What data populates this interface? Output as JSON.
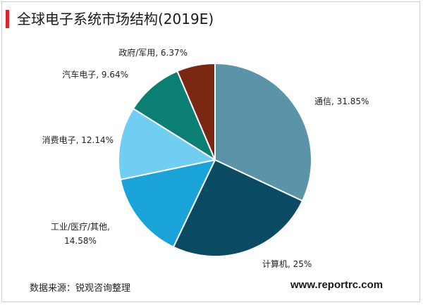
{
  "title": "全球电子系统市场结构(2019E)",
  "source": "数据来源：锐观咨询整理",
  "website": "www.reportrc.com",
  "chart_data": {
    "type": "pie",
    "title": "全球电子系统市场结构(2019E)",
    "slices": [
      {
        "name": "通信",
        "value": 31.85,
        "label": "通信, 31.85%",
        "color": "#5b93a8"
      },
      {
        "name": "计算机",
        "value": 25,
        "label": "计算机, 25%",
        "color": "#0b4a63"
      },
      {
        "name": "工业/医疗/其他",
        "value": 14.58,
        "label": "工业/医疗/其他, 14.58%",
        "label_lines": [
          "工业/医疗/其他,",
          "14.58%"
        ],
        "color": "#1aa3d9"
      },
      {
        "name": "消费电子",
        "value": 12.14,
        "label": "消费电子, 12.14%",
        "color": "#6fcef1"
      },
      {
        "name": "汽车电子",
        "value": 9.64,
        "label": "汽车电子, 9.64%",
        "color": "#0c7f74"
      },
      {
        "name": "政府/军用",
        "value": 6.37,
        "label": "政府/军用, 6.37%",
        "color": "#7a2813"
      }
    ],
    "start": "12 o'clock",
    "direction": "clockwise",
    "legend": "none"
  }
}
